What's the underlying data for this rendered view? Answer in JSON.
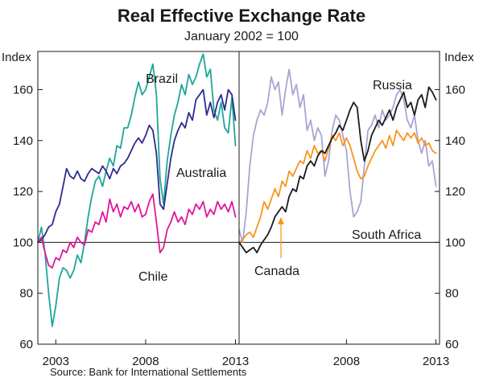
{
  "chart_data": {
    "type": "line",
    "title": "Real Effective Exchange Rate",
    "subtitle": "January 2002 = 100",
    "y_unit_left": "Index",
    "y_unit_right": "Index",
    "ylim": [
      60,
      175
    ],
    "yticks": [
      "60",
      "80",
      "100",
      "120",
      "140",
      "160"
    ],
    "yticks_right": [
      "60",
      "80",
      "100",
      "120",
      "140",
      "160"
    ],
    "xlim": [
      2002,
      2013.2
    ],
    "xticks_left": [
      "2003",
      "2008",
      "2013"
    ],
    "xticks_right": [
      "2008",
      "2013"
    ],
    "source": "Source: Bank for International Settlements",
    "colors": {
      "brazil": "#1fa59a",
      "australia": "#2b2b8f",
      "chile": "#e0169a",
      "russia": "#1a1a1a",
      "canada": "#f7941d",
      "south_africa": "#a8a4d6"
    },
    "panels": [
      {
        "name": "left",
        "series": [
          {
            "key": "brazil",
            "label": "Brazil",
            "color": "#1fa59a",
            "x": [
              2002.0,
              2002.2,
              2002.4,
              2002.6,
              2002.8,
              2003.0,
              2003.2,
              2003.4,
              2003.6,
              2003.8,
              2004.0,
              2004.2,
              2004.4,
              2004.6,
              2004.8,
              2005.0,
              2005.2,
              2005.4,
              2005.6,
              2005.8,
              2006.0,
              2006.2,
              2006.4,
              2006.6,
              2006.8,
              2007.0,
              2007.2,
              2007.4,
              2007.6,
              2007.8,
              2008.0,
              2008.2,
              2008.4,
              2008.6,
              2008.8,
              2009.0,
              2009.2,
              2009.4,
              2009.6,
              2009.8,
              2010.0,
              2010.2,
              2010.4,
              2010.6,
              2010.8,
              2011.0,
              2011.2,
              2011.4,
              2011.6,
              2011.8,
              2012.0,
              2012.2,
              2012.4,
              2012.6,
              2012.8,
              2013.0
            ],
            "y": [
              100,
              106,
              96,
              80,
              67,
              75,
              86,
              90,
              89,
              86,
              89,
              95,
              92,
              100,
              110,
              118,
              124,
              126,
              122,
              128,
              133,
              130,
              138,
              137,
              145,
              145,
              150,
              157,
              163,
              158,
              160,
              165,
              170,
              158,
              125,
              115,
              132,
              142,
              150,
              155,
              162,
              158,
              166,
              162,
              165,
              170,
              174,
              165,
              168,
              152,
              148,
              155,
              145,
              143,
              157,
              138
            ]
          },
          {
            "key": "australia",
            "label": "Australia",
            "color": "#2b2b8f",
            "x": [
              2002.0,
              2002.2,
              2002.4,
              2002.6,
              2002.8,
              2003.0,
              2003.2,
              2003.4,
              2003.6,
              2003.8,
              2004.0,
              2004.2,
              2004.4,
              2004.6,
              2004.8,
              2005.0,
              2005.2,
              2005.4,
              2005.6,
              2005.8,
              2006.0,
              2006.2,
              2006.4,
              2006.6,
              2006.8,
              2007.0,
              2007.2,
              2007.4,
              2007.6,
              2007.8,
              2008.0,
              2008.2,
              2008.4,
              2008.6,
              2008.8,
              2009.0,
              2009.2,
              2009.4,
              2009.6,
              2009.8,
              2010.0,
              2010.2,
              2010.4,
              2010.6,
              2010.8,
              2011.0,
              2011.2,
              2011.4,
              2011.6,
              2011.8,
              2012.0,
              2012.2,
              2012.4,
              2012.6,
              2012.8,
              2013.0
            ],
            "y": [
              100,
              101,
              103,
              106,
              107,
              112,
              115,
              122,
              129,
              126,
              125,
              128,
              125,
              124,
              127,
              129,
              128,
              127,
              130,
              128,
              125,
              129,
              127,
              130,
              131,
              133,
              136,
              139,
              141,
              139,
              142,
              146,
              144,
              135,
              115,
              113,
              123,
              133,
              140,
              144,
              147,
              145,
              151,
              148,
              156,
              158,
              160,
              150,
              155,
              149,
              155,
              158,
              152,
              160,
              158,
              148
            ]
          },
          {
            "key": "chile",
            "label": "Chile",
            "color": "#e0169a",
            "x": [
              2002.0,
              2002.2,
              2002.4,
              2002.6,
              2002.8,
              2003.0,
              2003.2,
              2003.4,
              2003.6,
              2003.8,
              2004.0,
              2004.2,
              2004.4,
              2004.6,
              2004.8,
              2005.0,
              2005.2,
              2005.4,
              2005.6,
              2005.8,
              2006.0,
              2006.2,
              2006.4,
              2006.6,
              2006.8,
              2007.0,
              2007.2,
              2007.4,
              2007.6,
              2007.8,
              2008.0,
              2008.2,
              2008.4,
              2008.6,
              2008.8,
              2009.0,
              2009.2,
              2009.4,
              2009.6,
              2009.8,
              2010.0,
              2010.2,
              2010.4,
              2010.6,
              2010.8,
              2011.0,
              2011.2,
              2011.4,
              2011.6,
              2011.8,
              2012.0,
              2012.2,
              2012.4,
              2012.6,
              2012.8,
              2013.0
            ],
            "y": [
              100,
              102,
              96,
              91,
              90,
              94,
              93,
              97,
              96,
              100,
              98,
              102,
              100,
              99,
              105,
              104,
              108,
              107,
              112,
              108,
              117,
              112,
              115,
              110,
              114,
              113,
              116,
              112,
              115,
              110,
              111,
              116,
              119,
              108,
              96,
              98,
              105,
              108,
              112,
              108,
              110,
              107,
              113,
              111,
              115,
              113,
              116,
              110,
              113,
              111,
              116,
              113,
              115,
              112,
              116,
              110
            ]
          }
        ]
      },
      {
        "name": "right",
        "series": [
          {
            "key": "south_africa",
            "label": "South Africa",
            "color": "#a8a4d6",
            "x": [
              2002.0,
              2002.2,
              2002.4,
              2002.6,
              2002.8,
              2003.0,
              2003.2,
              2003.4,
              2003.6,
              2003.8,
              2004.0,
              2004.2,
              2004.4,
              2004.6,
              2004.8,
              2005.0,
              2005.2,
              2005.4,
              2005.6,
              2005.8,
              2006.0,
              2006.2,
              2006.4,
              2006.6,
              2006.8,
              2007.0,
              2007.2,
              2007.4,
              2007.6,
              2007.8,
              2008.0,
              2008.2,
              2008.4,
              2008.6,
              2008.8,
              2009.0,
              2009.2,
              2009.4,
              2009.6,
              2009.8,
              2010.0,
              2010.2,
              2010.4,
              2010.6,
              2010.8,
              2011.0,
              2011.2,
              2011.4,
              2011.6,
              2011.8,
              2012.0,
              2012.2,
              2012.4,
              2012.6,
              2012.8,
              2013.0
            ],
            "y": [
              105,
              100,
              112,
              130,
              142,
              148,
              152,
              150,
              155,
              165,
              160,
              163,
              150,
              160,
              168,
              158,
              162,
              153,
              158,
              144,
              148,
              140,
              145,
              142,
              126,
              132,
              144,
              150,
              148,
              142,
              136,
              120,
              110,
              112,
              116,
              130,
              144,
              146,
              150,
              145,
              152,
              148,
              150,
              153,
              158,
              160,
              156,
              148,
              145,
              150,
              140,
              135,
              140,
              130,
              132,
              122
            ]
          },
          {
            "key": "canada",
            "label": "Canada",
            "color": "#f7941d",
            "x": [
              2002.0,
              2002.2,
              2002.4,
              2002.6,
              2002.8,
              2003.0,
              2003.2,
              2003.4,
              2003.6,
              2003.8,
              2004.0,
              2004.2,
              2004.4,
              2004.6,
              2004.8,
              2005.0,
              2005.2,
              2005.4,
              2005.6,
              2005.8,
              2006.0,
              2006.2,
              2006.4,
              2006.6,
              2006.8,
              2007.0,
              2007.2,
              2007.4,
              2007.6,
              2007.8,
              2008.0,
              2008.2,
              2008.4,
              2008.6,
              2008.8,
              2009.0,
              2009.2,
              2009.4,
              2009.6,
              2009.8,
              2010.0,
              2010.2,
              2010.4,
              2010.6,
              2010.8,
              2011.0,
              2011.2,
              2011.4,
              2011.6,
              2011.8,
              2012.0,
              2012.2,
              2012.4,
              2012.6,
              2012.8,
              2013.0
            ],
            "y": [
              100,
              101,
              103,
              104,
              102,
              106,
              110,
              116,
              113,
              117,
              121,
              118,
              124,
              122,
              128,
              126,
              129,
              132,
              131,
              136,
              133,
              138,
              135,
              136,
              132,
              137,
              142,
              140,
              143,
              138,
              141,
              138,
              133,
              128,
              125,
              126,
              130,
              133,
              136,
              138,
              140,
              137,
              142,
              138,
              144,
              142,
              140,
              143,
              141,
              143,
              139,
              141,
              138,
              139,
              136,
              135
            ]
          },
          {
            "key": "russia",
            "label": "Russia",
            "color": "#1a1a1a",
            "x": [
              2002.0,
              2002.2,
              2002.4,
              2002.6,
              2002.8,
              2003.0,
              2003.2,
              2003.4,
              2003.6,
              2003.8,
              2004.0,
              2004.2,
              2004.4,
              2004.6,
              2004.8,
              2005.0,
              2005.2,
              2005.4,
              2005.6,
              2005.8,
              2006.0,
              2006.2,
              2006.4,
              2006.6,
              2006.8,
              2007.0,
              2007.2,
              2007.4,
              2007.6,
              2007.8,
              2008.0,
              2008.2,
              2008.4,
              2008.6,
              2008.8,
              2009.0,
              2009.2,
              2009.4,
              2009.6,
              2009.8,
              2010.0,
              2010.2,
              2010.4,
              2010.6,
              2010.8,
              2011.0,
              2011.2,
              2011.4,
              2011.6,
              2011.8,
              2012.0,
              2012.2,
              2012.4,
              2012.6,
              2012.8,
              2013.0
            ],
            "y": [
              100,
              98,
              96,
              97,
              98,
              96,
              99,
              101,
              103,
              106,
              110,
              112,
              114,
              112,
              118,
              121,
              120,
              126,
              125,
              130,
              132,
              130,
              134,
              136,
              135,
              138,
              141,
              143,
              146,
              144,
              148,
              152,
              155,
              153,
              140,
              132,
              136,
              142,
              145,
              148,
              146,
              149,
              152,
              148,
              153,
              156,
              159,
              153,
              155,
              150,
              156,
              158,
              153,
              161,
              159,
              156
            ]
          }
        ]
      }
    ]
  }
}
